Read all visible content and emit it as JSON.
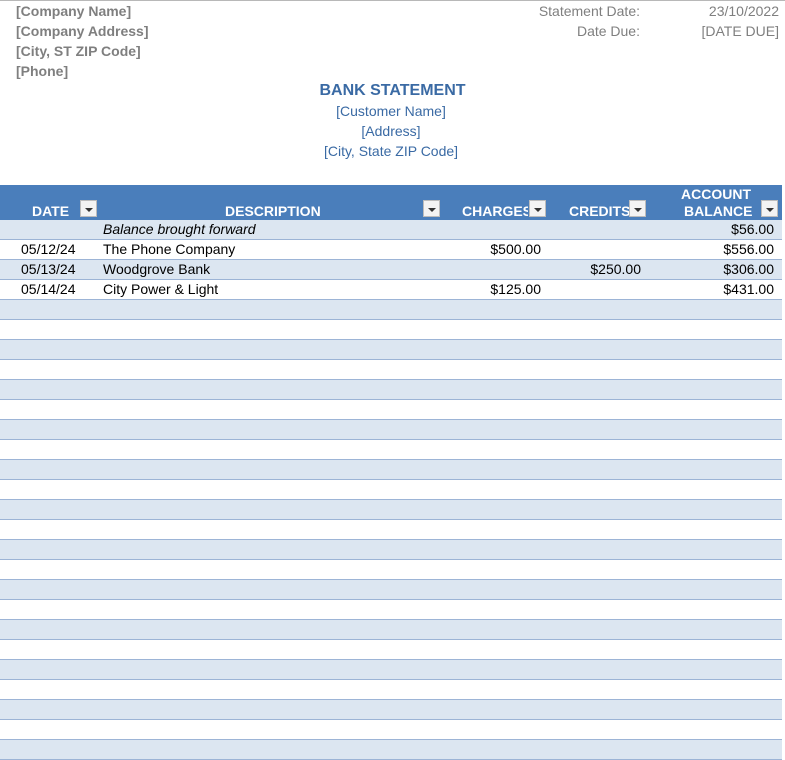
{
  "company": {
    "name": "[Company Name]",
    "address": "[Company Address]",
    "city": "[City, ST  ZIP Code]",
    "phone": "[Phone]"
  },
  "meta": {
    "statement_date_label": "Statement Date:",
    "statement_date_value": "23/10/2022",
    "date_due_label": "Date Due:",
    "date_due_value": "[DATE DUE]"
  },
  "title": "BANK STATEMENT",
  "customer": {
    "name": "[Customer Name]",
    "address": "[Address]",
    "city": "[City, State  ZIP Code]"
  },
  "table": {
    "headers": {
      "date": "DATE",
      "description": "DESCRIPTION",
      "charges": "CHARGES",
      "credits": "CREDITS",
      "balance_line1": "ACCOUNT",
      "balance_line2": "BALANCE"
    },
    "rows": [
      {
        "date": "",
        "description": "Balance brought forward",
        "charges": "",
        "credits": "",
        "balance": "$56.00",
        "italic": true
      },
      {
        "date": "05/12/24",
        "description": "The Phone Company",
        "charges": "$500.00",
        "credits": "",
        "balance": "$556.00"
      },
      {
        "date": "05/13/24",
        "description": "Woodgrove Bank",
        "charges": "",
        "credits": "$250.00",
        "balance": "$306.00"
      },
      {
        "date": "05/14/24",
        "description": "City Power & Light",
        "charges": "$125.00",
        "credits": "",
        "balance": "$431.00"
      }
    ],
    "empty_rows": 23
  },
  "colors": {
    "header_bg": "#4a7ebb",
    "band_bg": "#dce6f1",
    "title_blue": "#3a6aa4",
    "gray_text": "#7f7f7f"
  }
}
